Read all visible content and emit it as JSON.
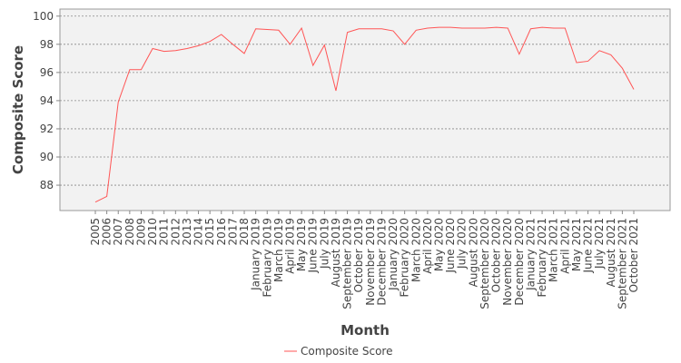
{
  "chart_data": {
    "type": "line",
    "xlabel": "Month",
    "ylabel": "Composite Score",
    "categories": [
      "2005",
      "2006",
      "2007",
      "2008",
      "2009",
      "2010",
      "2011",
      "2012",
      "2013",
      "2014",
      "2015",
      "2016",
      "2017",
      "2018",
      "January 2019",
      "February 2019",
      "March 2019",
      "April 2019",
      "May 2019",
      "June 2019",
      "July 2019",
      "August 2019",
      "September 2019",
      "October 2019",
      "November 2019",
      "December 2019",
      "January 2020",
      "February 2020",
      "March 2020",
      "April 2020",
      "May 2020",
      "June 2020",
      "July 2020",
      "August 2020",
      "September 2020",
      "October 2020",
      "November 2020",
      "December 2020",
      "January 2021",
      "February 2021",
      "March 2021",
      "April 2021",
      "May 2021",
      "June 2021",
      "July 2021",
      "August 2021",
      "September 2021",
      "October 2021"
    ],
    "series": [
      {
        "name": "Composite Score",
        "color": "#ff5555",
        "values": [
          86.8,
          87.2,
          93.9,
          96.2,
          96.2,
          97.7,
          97.5,
          97.55,
          97.7,
          97.9,
          98.2,
          98.7,
          98.0,
          97.35,
          99.1,
          99.05,
          99.0,
          98.0,
          99.15,
          96.5,
          97.95,
          94.7,
          98.85,
          99.1,
          99.1,
          99.1,
          98.95,
          98.0,
          99.0,
          99.15,
          99.2,
          99.2,
          99.15,
          99.15,
          99.15,
          99.2,
          99.15,
          97.3,
          99.1,
          99.2,
          99.15,
          99.15,
          96.7,
          96.8,
          97.55,
          97.25,
          96.3,
          94.8
        ]
      }
    ],
    "ylim": [
      86.2,
      100.5
    ],
    "yticks": [
      88,
      90,
      92,
      94,
      96,
      98,
      100
    ],
    "grid": true,
    "legend": "bottom"
  }
}
